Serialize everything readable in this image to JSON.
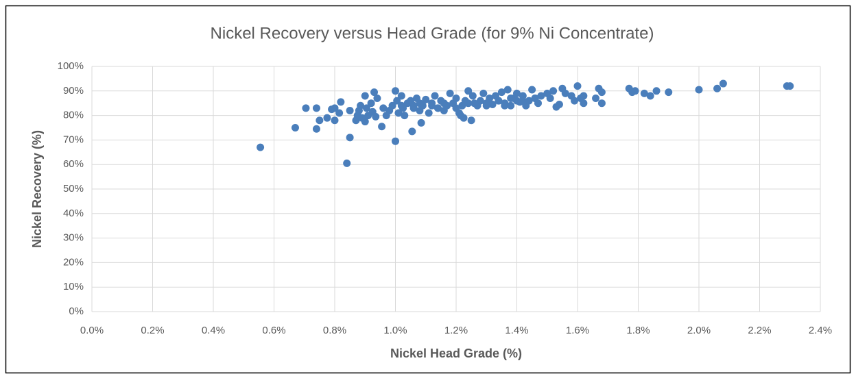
{
  "chart_data": {
    "type": "scatter",
    "title": "Nickel Recovery versus Head Grade (for 9% Ni Concentrate)",
    "x_label": "Nickel Head Grade (%)",
    "y_label": "Nickel Recovery (%)",
    "color": "#4a7ebb",
    "grid": true,
    "xlim": [
      0,
      2.4
    ],
    "ylim": [
      0,
      100
    ],
    "xticks": [
      {
        "value": 0,
        "label": "0.0%"
      },
      {
        "value": 0.2,
        "label": "0.2%"
      },
      {
        "value": 0.4,
        "label": "0.4%"
      },
      {
        "value": 0.6,
        "label": "0.6%"
      },
      {
        "value": 0.8,
        "label": "0.8%"
      },
      {
        "value": 1.0,
        "label": "1.0%"
      },
      {
        "value": 1.2,
        "label": "1.2%"
      },
      {
        "value": 1.4,
        "label": "1.4%"
      },
      {
        "value": 1.6,
        "label": "1.6%"
      },
      {
        "value": 1.8,
        "label": "1.8%"
      },
      {
        "value": 2.0,
        "label": "2.0%"
      },
      {
        "value": 2.2,
        "label": "2.2%"
      },
      {
        "value": 2.4,
        "label": "2.4%"
      }
    ],
    "yticks": [
      {
        "value": 0,
        "label": "0%"
      },
      {
        "value": 10,
        "label": "10%"
      },
      {
        "value": 20,
        "label": "20%"
      },
      {
        "value": 30,
        "label": "30%"
      },
      {
        "value": 40,
        "label": "40%"
      },
      {
        "value": 50,
        "label": "50%"
      },
      {
        "value": 60,
        "label": "60%"
      },
      {
        "value": 70,
        "label": "70%"
      },
      {
        "value": 80,
        "label": "80%"
      },
      {
        "value": 90,
        "label": "90%"
      },
      {
        "value": 100,
        "label": "100%"
      }
    ],
    "x": [
      0.555,
      0.67,
      0.705,
      0.74,
      0.74,
      0.75,
      0.775,
      0.79,
      0.8,
      0.8,
      0.815,
      0.82,
      0.84,
      0.85,
      0.85,
      0.87,
      0.875,
      0.88,
      0.885,
      0.89,
      0.9,
      0.9,
      0.905,
      0.91,
      0.92,
      0.925,
      0.93,
      0.935,
      0.94,
      0.955,
      0.96,
      0.97,
      0.98,
      0.99,
      1.0,
      1.0,
      1.005,
      1.01,
      1.02,
      1.025,
      1.03,
      1.04,
      1.05,
      1.055,
      1.06,
      1.07,
      1.08,
      1.085,
      1.09,
      1.1,
      1.11,
      1.12,
      1.13,
      1.14,
      1.15,
      1.16,
      1.17,
      1.18,
      1.19,
      1.2,
      1.21,
      1.215,
      1.22,
      1.225,
      1.23,
      1.24,
      1.25,
      1.255,
      1.27,
      1.28,
      1.29,
      1.3,
      1.31,
      1.32,
      1.33,
      1.34,
      1.35,
      1.36,
      1.37,
      1.38,
      1.39,
      1.4,
      1.41,
      1.42,
      1.43,
      1.44,
      1.45,
      1.46,
      1.47,
      1.48,
      1.5,
      1.51,
      1.52,
      1.53,
      1.54,
      1.55,
      1.56,
      1.58,
      1.59,
      1.6,
      1.61,
      1.62,
      1.62,
      1.66,
      1.67,
      1.68,
      1.68,
      1.77,
      1.78,
      1.79,
      1.82,
      1.84,
      1.86,
      1.9,
      2.0,
      2.06,
      2.08,
      2.29,
      2.3,
      1.02,
      1.06,
      1.12,
      1.16,
      1.2,
      1.26,
      1.3,
      1.34,
      1.38,
      1.42,
      1.46,
      1.08,
      1.14,
      1.24,
      1.36,
      1.4
    ],
    "values": [
      67,
      75,
      83,
      83,
      74.5,
      78,
      79,
      82.5,
      83,
      78,
      81,
      85.5,
      60.5,
      71,
      82,
      78,
      80,
      82,
      84,
      79,
      88,
      77.5,
      83,
      80,
      85,
      81.5,
      89.5,
      79.5,
      87,
      75.5,
      83,
      80,
      82,
      84,
      90,
      69.5,
      86,
      81,
      88,
      83,
      80,
      85,
      86,
      73.5,
      84,
      87,
      82,
      77,
      84,
      86.5,
      81,
      85,
      88,
      83,
      86,
      82,
      84,
      89,
      85,
      87,
      81,
      80,
      84,
      79,
      86,
      90,
      78,
      88,
      84,
      86,
      89,
      85,
      87,
      84.5,
      88,
      86,
      89.5,
      85,
      90.5,
      84,
      87,
      89,
      85.5,
      88,
      84,
      86,
      90.5,
      87,
      85,
      88,
      89,
      87,
      90,
      83.5,
      84.5,
      91,
      89,
      88,
      86,
      92,
      87,
      85,
      88,
      87,
      91,
      85,
      89.5,
      91,
      89.5,
      90,
      89,
      88,
      90,
      89.5,
      90.5,
      91,
      93,
      92,
      92,
      84,
      83,
      84,
      85,
      83,
      85,
      84,
      86,
      87,
      86,
      87,
      85,
      83,
      85,
      84,
      86
    ]
  }
}
